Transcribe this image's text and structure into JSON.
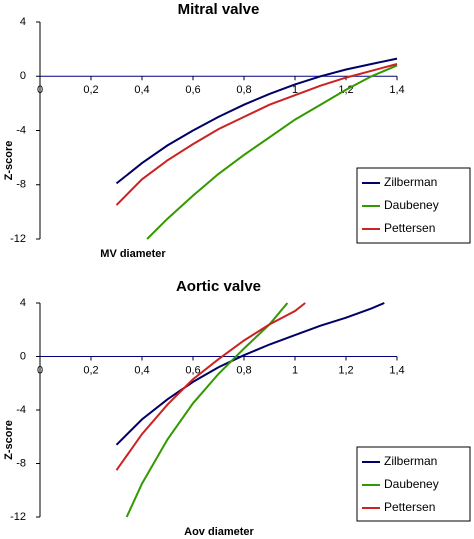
{
  "chart_data": [
    {
      "type": "line",
      "title": "Mitral valve",
      "x_label": "MV diameter",
      "y_label": "Z-score",
      "xlim": [
        0,
        1.4
      ],
      "ylim": [
        -12,
        4
      ],
      "xticks": [
        0,
        {
          "value": 0.2,
          "label": "0,2"
        },
        {
          "value": 0.4,
          "label": "0,4"
        },
        {
          "value": 0.6,
          "label": "0,6"
        },
        {
          "value": 0.8,
          "label": "0,8"
        },
        1,
        {
          "value": 1.2,
          "label": "1,2"
        },
        {
          "value": 1.4,
          "label": "1,4"
        }
      ],
      "yticks": [
        4,
        0,
        -4,
        -8,
        -12
      ],
      "legend": "lower right",
      "series": [
        {
          "name": "Zilberman",
          "color": "#000066",
          "x": [
            0.3,
            0.4,
            0.5,
            0.6,
            0.7,
            0.8,
            0.9,
            1.0,
            1.1,
            1.2,
            1.3,
            1.4
          ],
          "values": [
            -7.9,
            -6.4,
            -5.1,
            -4.0,
            -3.0,
            -2.1,
            -1.3,
            -0.6,
            0.0,
            0.5,
            0.9,
            1.3
          ]
        },
        {
          "name": "Daubeney",
          "color": "#339900",
          "x": [
            0.42,
            0.5,
            0.6,
            0.7,
            0.8,
            0.9,
            1.0,
            1.1,
            1.2,
            1.3,
            1.4
          ],
          "values": [
            -12,
            -10.5,
            -8.8,
            -7.2,
            -5.8,
            -4.5,
            -3.2,
            -2.1,
            -1.0,
            0.0,
            0.8
          ]
        },
        {
          "name": "Pettersen",
          "color": "#cc2222",
          "x": [
            0.3,
            0.4,
            0.5,
            0.6,
            0.7,
            0.8,
            0.9,
            1.0,
            1.1,
            1.2,
            1.3,
            1.4
          ],
          "values": [
            -9.5,
            -7.6,
            -6.2,
            -5.0,
            -3.9,
            -3.0,
            -2.1,
            -1.4,
            -0.7,
            -0.1,
            0.4,
            0.9
          ]
        }
      ]
    },
    {
      "type": "line",
      "title": "Aortic valve",
      "x_label": "Aov diameter",
      "y_label": "Z-score",
      "xlim": [
        0,
        1.4
      ],
      "ylim": [
        -12,
        4
      ],
      "xticks": [
        0,
        {
          "value": 0.2,
          "label": "0,2"
        },
        {
          "value": 0.4,
          "label": "0,4"
        },
        {
          "value": 0.6,
          "label": "0,6"
        },
        {
          "value": 0.8,
          "label": "0,8"
        },
        1,
        {
          "value": 1.2,
          "label": "1,2"
        },
        {
          "value": 1.4,
          "label": "1,4"
        }
      ],
      "yticks": [
        4,
        0,
        -4,
        -8,
        -12
      ],
      "legend": "lower right",
      "series": [
        {
          "name": "Zilberman",
          "color": "#000066",
          "x": [
            0.3,
            0.4,
            0.5,
            0.6,
            0.7,
            0.8,
            0.9,
            1.0,
            1.1,
            1.2,
            1.3,
            1.35
          ],
          "values": [
            -6.6,
            -4.7,
            -3.2,
            -1.9,
            -0.8,
            0.1,
            0.9,
            1.6,
            2.3,
            2.9,
            3.6,
            4.0
          ]
        },
        {
          "name": "Daubeney",
          "color": "#339900",
          "x": [
            0.34,
            0.4,
            0.5,
            0.6,
            0.7,
            0.8,
            0.9,
            0.97
          ],
          "values": [
            -12,
            -9.5,
            -6.2,
            -3.5,
            -1.3,
            0.6,
            2.4,
            4.0
          ]
        },
        {
          "name": "Pettersen",
          "color": "#cc2222",
          "x": [
            0.3,
            0.4,
            0.5,
            0.6,
            0.7,
            0.8,
            0.9,
            1.0,
            1.04
          ],
          "values": [
            -8.5,
            -5.8,
            -3.6,
            -1.7,
            -0.2,
            1.2,
            2.4,
            3.4,
            4.0
          ]
        }
      ]
    }
  ]
}
